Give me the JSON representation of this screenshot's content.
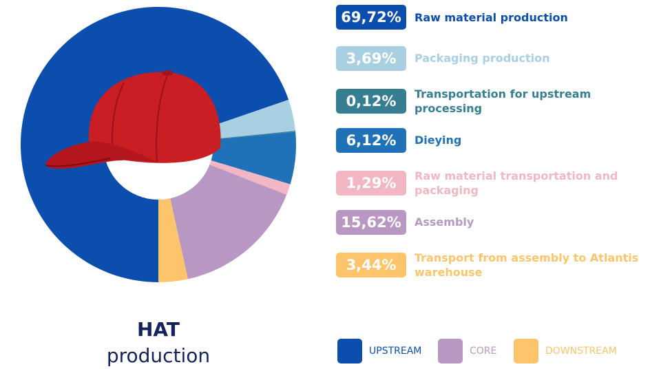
{
  "chart_data": {
    "type": "pie",
    "title": "HAT",
    "subtitle": "production",
    "categories": [
      "Raw material production",
      "Packaging production",
      "Transportation for upstream processing",
      "Dieying",
      "Raw material transportation and packaging",
      "Assembly",
      "Transport from assembly to Atlantis warehouse"
    ],
    "values": [
      69.72,
      3.69,
      0.12,
      6.12,
      1.29,
      15.62,
      3.44
    ],
    "value_labels": [
      "69,72%",
      "3,69%",
      "0,12%",
      "6,12%",
      "1,29%",
      "15,62%",
      "3,44%"
    ],
    "colors": [
      "#0b4ead",
      "#a9cfe3",
      "#367f93",
      "#2072b8",
      "#f2b6c4",
      "#b898c2",
      "#fdc46b"
    ],
    "groups": [
      {
        "name": "UPSTREAM",
        "color": "#0b4ead"
      },
      {
        "name": "CORE",
        "color": "#b898c2"
      },
      {
        "name": "DOWNSTREAM",
        "color": "#fdc46b"
      }
    ]
  }
}
